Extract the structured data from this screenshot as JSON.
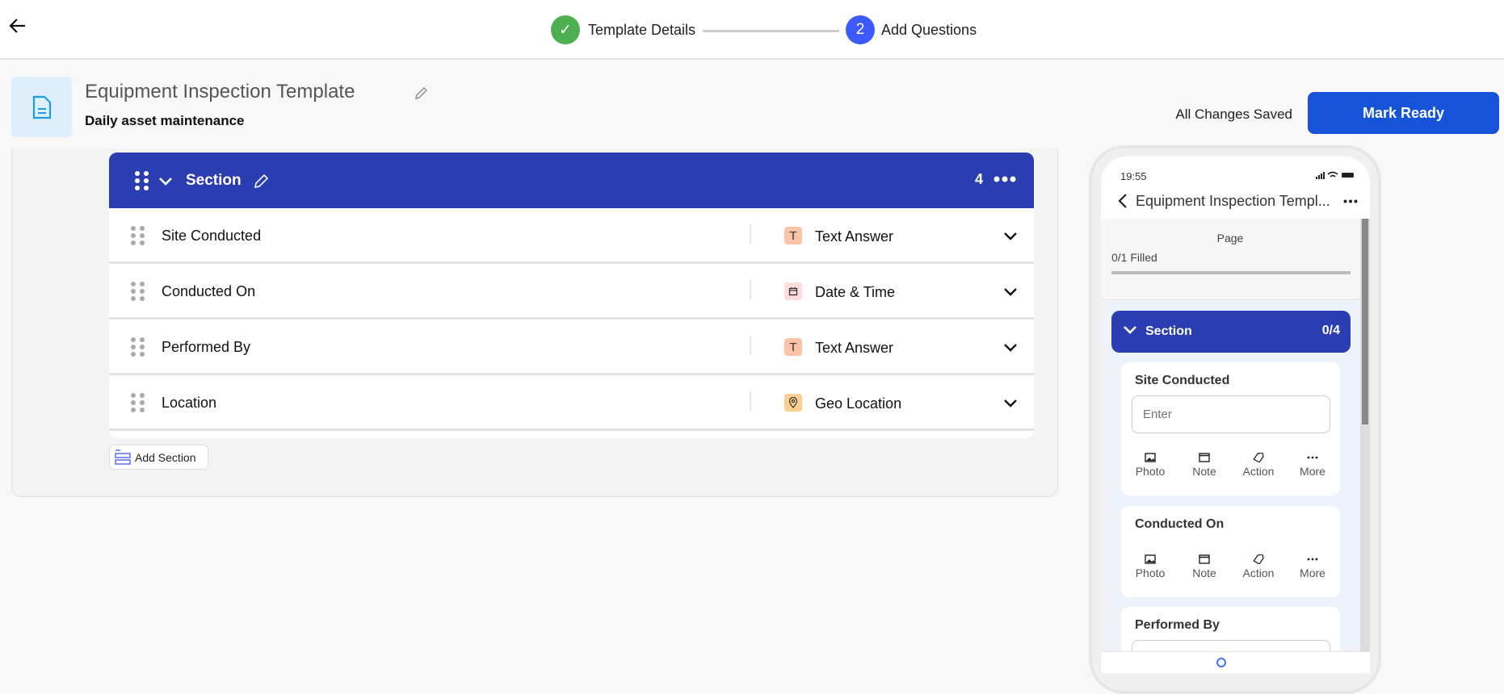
{
  "header": {
    "steps": [
      {
        "label": "Template Details",
        "status": "complete",
        "color": "#4caf50"
      },
      {
        "number": "2",
        "label": "Add Questions",
        "status": "active",
        "color": "#3d5afe"
      }
    ]
  },
  "template": {
    "title": "Equipment Inspection Template",
    "subtitle": "Daily asset maintenance",
    "save_status": "All Changes Saved",
    "mark_ready_label": "Mark Ready"
  },
  "section": {
    "title": "Section",
    "count": "4",
    "color": "#2b3eb1",
    "questions": [
      {
        "label": "Site Conducted",
        "type": "Text Answer",
        "type_icon": "text-icon",
        "icon_bg": "#fcc4a6"
      },
      {
        "label": "Conducted On",
        "type": "Date & Time",
        "type_icon": "calendar-icon",
        "icon_bg": "#fddcdc"
      },
      {
        "label": "Performed By",
        "type": "Text Answer",
        "type_icon": "text-icon",
        "icon_bg": "#fcc4a6"
      },
      {
        "label": "Location",
        "type": "Geo Location",
        "type_icon": "location-pin-icon",
        "icon_bg": "#f8cf8c"
      }
    ],
    "add_section_label": "Add Section"
  },
  "preview": {
    "time": "19:55",
    "nav_title": "Equipment Inspection Templ...",
    "page_label": "Page",
    "filled": "0/1 Filled",
    "filled_fraction": 0,
    "section_title": "Section",
    "section_progress": "0/4",
    "cards": [
      {
        "title": "Site Conducted",
        "placeholder": "Enter"
      },
      {
        "title": "Conducted On"
      },
      {
        "title": "Performed By"
      }
    ],
    "actions": [
      "Photo",
      "Note",
      "Action",
      "More"
    ]
  }
}
